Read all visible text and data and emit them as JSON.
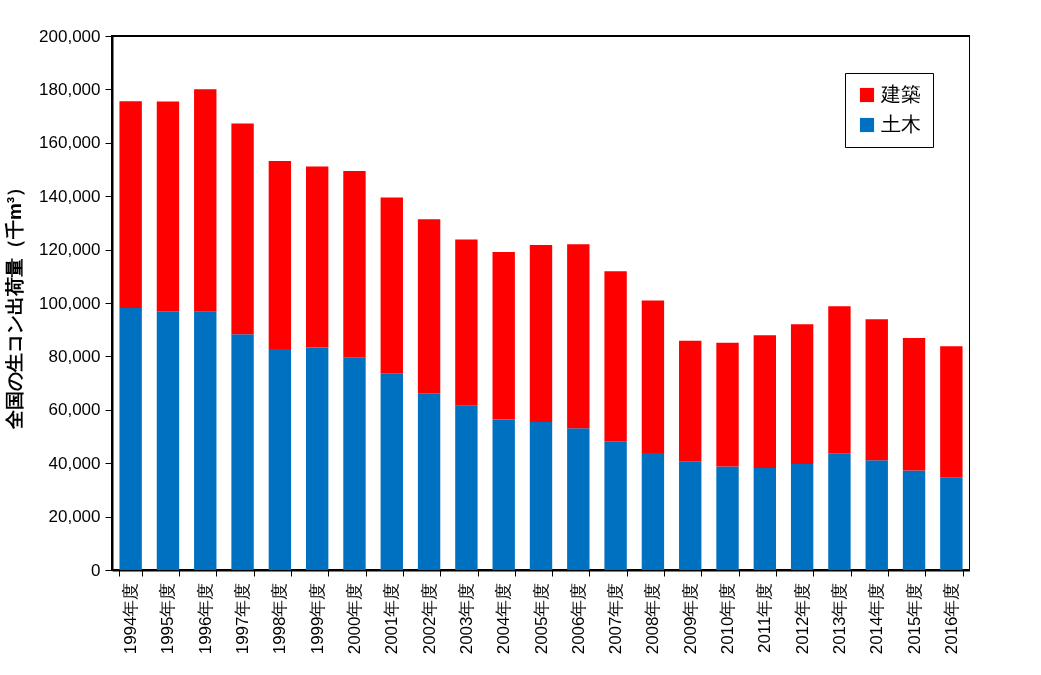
{
  "chart_data": {
    "type": "bar",
    "stacked": true,
    "ylabel": "全国の生コン出荷量（千m³）",
    "categories": [
      "1994年度",
      "1995年度",
      "1996年度",
      "1997年度",
      "1998年度",
      "1999年度",
      "2000年度",
      "2001年度",
      "2002年度",
      "2003年度",
      "2004年度",
      "2005年度",
      "2006年度",
      "2007年度",
      "2008年度",
      "2009年度",
      "2010年度",
      "2011年度",
      "2012年度",
      "2013年度",
      "2014年度",
      "2015年度",
      "2016年度"
    ],
    "series": [
      {
        "name": "土木",
        "color": "#0070c0",
        "values": [
          98100,
          96900,
          96700,
          88300,
          82800,
          83300,
          79700,
          73700,
          66200,
          61500,
          56400,
          55400,
          53100,
          48200,
          43800,
          40700,
          38800,
          38200,
          39700,
          43700,
          41100,
          37300,
          34700
        ]
      },
      {
        "name": "建築",
        "color": "#ff0000",
        "values": [
          77500,
          78600,
          83400,
          78900,
          70400,
          67800,
          69700,
          65800,
          65200,
          62300,
          62700,
          66300,
          68900,
          63700,
          57100,
          45200,
          46300,
          49700,
          52300,
          55100,
          52800,
          49600,
          49100
        ]
      }
    ],
    "ylim": [
      0,
      200000
    ],
    "yticks": [
      0,
      {
        "value": 20000,
        "label": "20,000"
      },
      {
        "value": 40000,
        "label": "40,000"
      },
      {
        "value": 60000,
        "label": "60,000"
      },
      {
        "value": 80000,
        "label": "80,000"
      },
      {
        "value": 100000,
        "label": "100,000"
      },
      {
        "value": 120000,
        "label": "120,000"
      },
      {
        "value": 140000,
        "label": "140,000"
      },
      {
        "value": 160000,
        "label": "160,000"
      },
      {
        "value": 180000,
        "label": "180,000"
      },
      {
        "value": 200000,
        "label": "200,000"
      }
    ],
    "grid": false,
    "legend": "top right"
  }
}
